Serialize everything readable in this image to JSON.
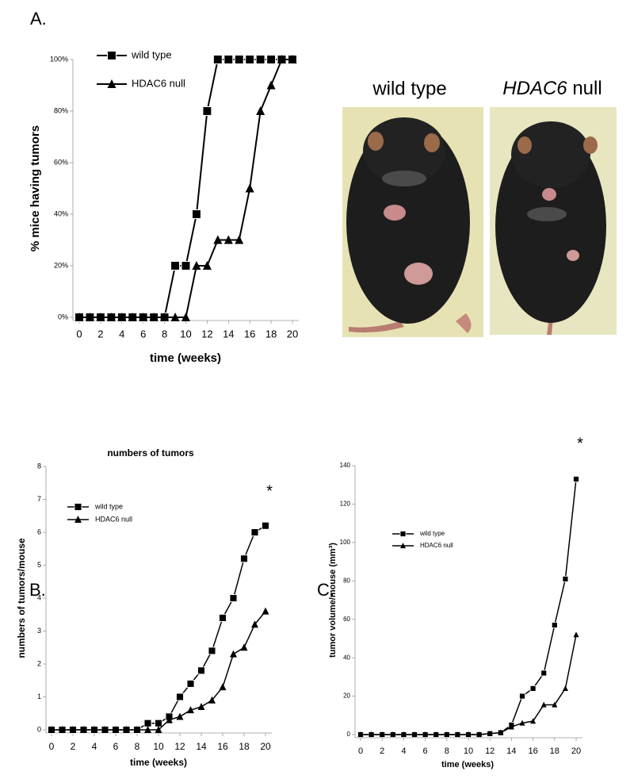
{
  "chart_data": [
    {
      "type": "line",
      "panel_label": "A.",
      "xlabel": "time (weeks)",
      "ylabel": "% mice having tumors",
      "x": [
        0,
        1,
        2,
        3,
        4,
        5,
        6,
        7,
        8,
        9,
        10,
        11,
        12,
        13,
        14,
        15,
        16,
        17,
        18,
        19,
        20
      ],
      "series": [
        {
          "name": "wild type",
          "color": "#000000",
          "marker": "square",
          "values": [
            0,
            0,
            0,
            0,
            0,
            0,
            0,
            0,
            0,
            20,
            20,
            40,
            80,
            100,
            100,
            100,
            100,
            100,
            100,
            100,
            100
          ]
        },
        {
          "name": "HDAC6 null",
          "color": "#000000",
          "marker": "triangle",
          "values": [
            0,
            0,
            0,
            0,
            0,
            0,
            0,
            0,
            0,
            0,
            0,
            20,
            20,
            30,
            30,
            30,
            50,
            80,
            90,
            100,
            100
          ]
        }
      ],
      "xlim": [
        0,
        20
      ],
      "xticks": [
        0,
        2,
        4,
        6,
        8,
        10,
        12,
        14,
        16,
        18,
        20
      ],
      "ylim": [
        0,
        100
      ],
      "yticks": [
        {
          "value": 0,
          "label": "0%"
        },
        {
          "value": 20,
          "label": "20%"
        },
        {
          "value": 40,
          "label": "40%"
        },
        {
          "value": 60,
          "label": "60%"
        },
        {
          "value": 80,
          "label": "80%"
        },
        {
          "value": 100,
          "label": "100%"
        }
      ]
    },
    {
      "type": "line",
      "panel_label": "B.",
      "title": "numbers of tumors",
      "xlabel": "time (weeks)",
      "ylabel": "numbers of tumors/mouse",
      "annotation": "*",
      "x": [
        0,
        1,
        2,
        3,
        4,
        5,
        6,
        7,
        8,
        9,
        10,
        11,
        12,
        13,
        14,
        15,
        16,
        17,
        18,
        19,
        20
      ],
      "series": [
        {
          "name": "wild type",
          "color": "#000000",
          "marker": "square",
          "values": [
            0,
            0,
            0,
            0,
            0,
            0,
            0,
            0,
            0,
            0.2,
            0.2,
            0.4,
            1.0,
            1.4,
            1.8,
            2.4,
            3.4,
            4.0,
            5.2,
            6.0,
            6.2
          ]
        },
        {
          "name": "HDAC6 null",
          "color": "#000000",
          "marker": "triangle",
          "values": [
            0,
            0,
            0,
            0,
            0,
            0,
            0,
            0,
            0,
            0,
            0,
            0.3,
            0.4,
            0.6,
            0.7,
            0.9,
            1.3,
            2.3,
            2.5,
            3.2,
            3.6
          ]
        }
      ],
      "xlim": [
        0,
        20
      ],
      "xticks": [
        0,
        2,
        4,
        6,
        8,
        10,
        12,
        14,
        16,
        18,
        20
      ],
      "ylim": [
        0,
        8
      ],
      "yticks": [
        0,
        1,
        2,
        3,
        4,
        5,
        6,
        7,
        8
      ]
    },
    {
      "type": "line",
      "panel_label": "C.",
      "xlabel": "time (weeks)",
      "ylabel": "tumor volume/mouse (mm³)",
      "annotation": "*",
      "x": [
        0,
        1,
        2,
        3,
        4,
        5,
        6,
        7,
        8,
        9,
        10,
        11,
        12,
        13,
        14,
        15,
        16,
        17,
        18,
        19,
        20
      ],
      "series": [
        {
          "name": "wild type",
          "color": "#000000",
          "marker": "square",
          "values": [
            0,
            0,
            0,
            0,
            0,
            0,
            0,
            0,
            0,
            0,
            0,
            0,
            0.5,
            1,
            5,
            20,
            24,
            32,
            57,
            81,
            133
          ]
        },
        {
          "name": "HDAC6 null",
          "color": "#000000",
          "marker": "triangle",
          "values": [
            0,
            0,
            0,
            0,
            0,
            0,
            0,
            0,
            0,
            0,
            0,
            0,
            0.5,
            1,
            4,
            6,
            7,
            15.5,
            15.5,
            24,
            52
          ]
        }
      ],
      "xlim": [
        0,
        20
      ],
      "xticks": [
        0,
        2,
        4,
        6,
        8,
        10,
        12,
        14,
        16,
        18,
        20
      ],
      "ylim": [
        0,
        140
      ],
      "yticks": [
        0,
        20,
        40,
        60,
        80,
        100,
        120,
        140
      ]
    }
  ],
  "photos": [
    {
      "caption": "wild type"
    },
    {
      "caption": "HDAC6 null"
    }
  ]
}
